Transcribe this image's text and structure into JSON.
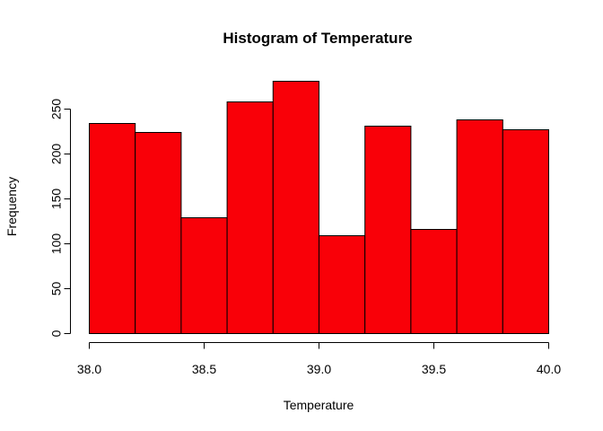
{
  "chart_data": {
    "type": "bar",
    "title": "Histogram of Temperature",
    "xlabel": "Temperature",
    "ylabel": "Frequency",
    "bins": [
      {
        "start": 38.0,
        "end": 38.2,
        "count": 234
      },
      {
        "start": 38.2,
        "end": 38.4,
        "count": 224
      },
      {
        "start": 38.4,
        "end": 38.6,
        "count": 129
      },
      {
        "start": 38.6,
        "end": 38.8,
        "count": 258
      },
      {
        "start": 38.8,
        "end": 39.0,
        "count": 281
      },
      {
        "start": 39.0,
        "end": 39.2,
        "count": 109
      },
      {
        "start": 39.2,
        "end": 39.4,
        "count": 231
      },
      {
        "start": 39.4,
        "end": 39.6,
        "count": 116
      },
      {
        "start": 39.6,
        "end": 39.8,
        "count": 238
      },
      {
        "start": 39.8,
        "end": 40.0,
        "count": 227
      }
    ],
    "xlim": [
      38.0,
      40.0
    ],
    "ylim": [
      0,
      281
    ],
    "x_ticks": [
      "38.0",
      "38.5",
      "39.0",
      "39.5",
      "40.0"
    ],
    "y_ticks": [
      "0",
      "50",
      "100",
      "150",
      "200",
      "250"
    ],
    "bar_color": "#f90008",
    "grid": false
  }
}
